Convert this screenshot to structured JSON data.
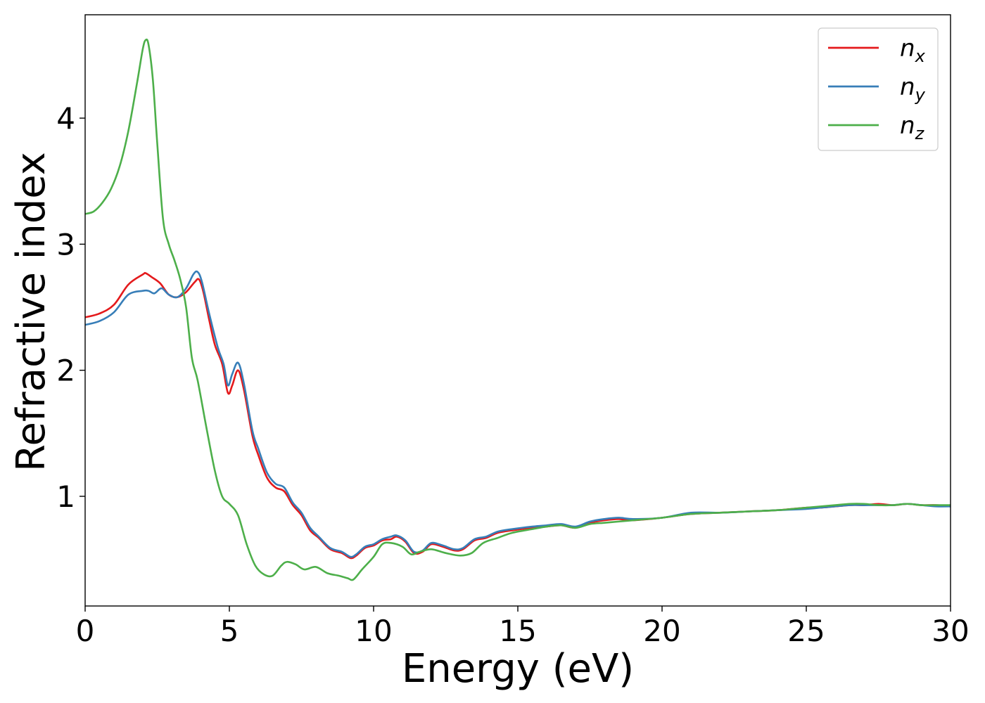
{
  "chart_data": {
    "type": "line",
    "title": "",
    "xlabel": "Energy (eV)",
    "ylabel": "Refractive index",
    "xlim": [
      0,
      30
    ],
    "ylim": [
      0.13,
      4.82
    ],
    "xticks": [
      0,
      5,
      10,
      15,
      20,
      25,
      30
    ],
    "yticks": [
      1,
      2,
      3,
      4
    ],
    "grid": false,
    "legend_position": "top-right",
    "series": [
      {
        "name": "n_x",
        "label_base": "n",
        "label_sub": "x",
        "color": "#e41a1c",
        "x": [
          0,
          0.5,
          1.0,
          1.5,
          2.0,
          2.1,
          2.3,
          2.6,
          2.9,
          3.2,
          3.5,
          3.8,
          3.95,
          4.1,
          4.3,
          4.5,
          4.75,
          4.95,
          5.1,
          5.3,
          5.5,
          5.8,
          6.0,
          6.3,
          6.6,
          6.9,
          7.2,
          7.5,
          7.8,
          8.1,
          8.5,
          8.9,
          9.2,
          9.4,
          9.7,
          10.0,
          10.3,
          10.6,
          10.8,
          11.1,
          11.4,
          11.7,
          12.0,
          12.4,
          12.8,
          13.1,
          13.5,
          13.9,
          14.3,
          14.8,
          15.5,
          16.0,
          16.5,
          17.0,
          17.5,
          18.0,
          18.5,
          19.0,
          20.0,
          21.0,
          22.0,
          23.0,
          24.0,
          25.0,
          25.5,
          26.5,
          27.0,
          27.5,
          28.0,
          28.5,
          29.0,
          29.5,
          30.0
        ],
        "y": [
          2.42,
          2.45,
          2.52,
          2.68,
          2.76,
          2.77,
          2.74,
          2.69,
          2.6,
          2.58,
          2.62,
          2.7,
          2.72,
          2.62,
          2.4,
          2.2,
          2.05,
          1.82,
          1.88,
          2.0,
          1.85,
          1.48,
          1.33,
          1.15,
          1.07,
          1.04,
          0.93,
          0.85,
          0.73,
          0.67,
          0.58,
          0.55,
          0.51,
          0.53,
          0.59,
          0.61,
          0.65,
          0.66,
          0.68,
          0.64,
          0.55,
          0.56,
          0.62,
          0.6,
          0.57,
          0.58,
          0.65,
          0.67,
          0.71,
          0.73,
          0.75,
          0.76,
          0.77,
          0.75,
          0.79,
          0.81,
          0.82,
          0.81,
          0.83,
          0.86,
          0.87,
          0.88,
          0.89,
          0.91,
          0.91,
          0.93,
          0.93,
          0.94,
          0.93,
          0.94,
          0.93,
          0.93,
          0.92
        ]
      },
      {
        "name": "n_y",
        "label_base": "n",
        "label_sub": "y",
        "color": "#377eb8",
        "x": [
          0,
          0.5,
          1.0,
          1.5,
          2.0,
          2.2,
          2.4,
          2.65,
          2.9,
          3.2,
          3.5,
          3.75,
          3.9,
          4.05,
          4.3,
          4.6,
          4.8,
          4.95,
          5.1,
          5.3,
          5.5,
          5.8,
          6.0,
          6.3,
          6.6,
          6.9,
          7.2,
          7.5,
          7.8,
          8.1,
          8.5,
          8.9,
          9.2,
          9.4,
          9.7,
          10.0,
          10.3,
          10.6,
          10.8,
          11.1,
          11.4,
          11.7,
          12.0,
          12.4,
          12.8,
          13.1,
          13.5,
          13.9,
          14.3,
          14.8,
          15.5,
          16.0,
          16.5,
          17.0,
          17.5,
          18.0,
          18.5,
          19.0,
          20.0,
          21.0,
          22.0,
          23.0,
          24.0,
          25.0,
          25.5,
          26.5,
          27.0,
          27.5,
          28.0,
          28.5,
          29.0,
          29.5,
          30.0
        ],
        "y": [
          2.36,
          2.39,
          2.46,
          2.6,
          2.63,
          2.63,
          2.61,
          2.65,
          2.6,
          2.58,
          2.65,
          2.76,
          2.78,
          2.7,
          2.45,
          2.18,
          2.05,
          1.88,
          1.97,
          2.06,
          1.9,
          1.52,
          1.38,
          1.19,
          1.1,
          1.07,
          0.95,
          0.87,
          0.75,
          0.68,
          0.59,
          0.56,
          0.52,
          0.54,
          0.6,
          0.62,
          0.66,
          0.68,
          0.69,
          0.65,
          0.56,
          0.57,
          0.63,
          0.61,
          0.58,
          0.59,
          0.66,
          0.68,
          0.72,
          0.74,
          0.76,
          0.77,
          0.78,
          0.76,
          0.8,
          0.82,
          0.83,
          0.82,
          0.83,
          0.87,
          0.87,
          0.88,
          0.89,
          0.9,
          0.91,
          0.93,
          0.93,
          0.93,
          0.93,
          0.94,
          0.93,
          0.92,
          0.92
        ]
      },
      {
        "name": "n_z",
        "label_base": "n",
        "label_sub": "z",
        "color": "#4daf4a",
        "x": [
          0,
          0.3,
          0.6,
          0.9,
          1.2,
          1.5,
          1.8,
          2.0,
          2.1,
          2.2,
          2.35,
          2.5,
          2.7,
          2.9,
          3.1,
          3.3,
          3.5,
          3.7,
          3.9,
          4.2,
          4.5,
          4.75,
          5.0,
          5.3,
          5.6,
          5.9,
          6.2,
          6.5,
          6.8,
          7.0,
          7.3,
          7.6,
          8.0,
          8.4,
          8.8,
          9.1,
          9.3,
          9.6,
          10.0,
          10.3,
          10.6,
          11.0,
          11.3,
          11.6,
          12.0,
          12.5,
          13.0,
          13.4,
          13.8,
          14.3,
          14.8,
          15.5,
          16.0,
          16.5,
          17.0,
          17.5,
          18.0,
          18.5,
          19.0,
          20.0,
          21.0,
          22.0,
          23.0,
          24.0,
          25.0,
          26.0,
          26.5,
          27.0,
          27.5,
          28.0,
          28.5,
          29.0,
          29.5,
          30.0
        ],
        "y": [
          3.24,
          3.26,
          3.33,
          3.44,
          3.62,
          3.9,
          4.28,
          4.55,
          4.62,
          4.58,
          4.3,
          3.8,
          3.2,
          3.0,
          2.87,
          2.72,
          2.5,
          2.1,
          1.92,
          1.55,
          1.2,
          1.0,
          0.94,
          0.85,
          0.62,
          0.45,
          0.38,
          0.37,
          0.45,
          0.48,
          0.46,
          0.42,
          0.44,
          0.39,
          0.37,
          0.35,
          0.34,
          0.42,
          0.52,
          0.62,
          0.63,
          0.6,
          0.54,
          0.56,
          0.58,
          0.55,
          0.53,
          0.55,
          0.63,
          0.67,
          0.71,
          0.74,
          0.76,
          0.77,
          0.75,
          0.78,
          0.79,
          0.8,
          0.81,
          0.83,
          0.86,
          0.87,
          0.88,
          0.89,
          0.91,
          0.93,
          0.94,
          0.94,
          0.93,
          0.93,
          0.94,
          0.93,
          0.93,
          0.93
        ]
      }
    ]
  }
}
